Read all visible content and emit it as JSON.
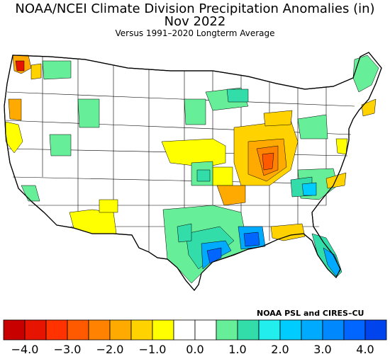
{
  "header": {
    "title": "NOAA/NCEI Climate Division Precipitation Anomalies (in)",
    "period": "Nov 2022",
    "subtitle": "Versus 1991–2020 Longterm Average"
  },
  "credit": "NOAA PSL and CIRES–CU",
  "legend": {
    "bins": [
      {
        "color": "#c80000",
        "min": -4.5,
        "max": -4.0
      },
      {
        "color": "#e61400",
        "min": -4.0,
        "max": -3.5
      },
      {
        "color": "#ff3200",
        "min": -3.5,
        "max": -3.0
      },
      {
        "color": "#ff5a00",
        "min": -3.0,
        "max": -2.5
      },
      {
        "color": "#ff8200",
        "min": -2.5,
        "max": -2.0
      },
      {
        "color": "#ffaa00",
        "min": -2.0,
        "max": -1.5
      },
      {
        "color": "#ffd200",
        "min": -1.5,
        "max": -1.0
      },
      {
        "color": "#ffff00",
        "min": -1.0,
        "max": -0.5
      },
      {
        "color": "#ffffff",
        "min": -0.5,
        "max": 0.0
      },
      {
        "color": "#ffffff",
        "min": 0.0,
        "max": 0.5
      },
      {
        "color": "#66ee99",
        "min": 0.5,
        "max": 1.0
      },
      {
        "color": "#33ddaa",
        "min": 1.0,
        "max": 1.5
      },
      {
        "color": "#22eeee",
        "min": 1.5,
        "max": 2.0
      },
      {
        "color": "#00ccff",
        "min": 2.0,
        "max": 2.5
      },
      {
        "color": "#00aaff",
        "min": 2.5,
        "max": 3.0
      },
      {
        "color": "#0088ff",
        "min": 3.0,
        "max": 3.5
      },
      {
        "color": "#0066ff",
        "min": 3.5,
        "max": 4.0
      },
      {
        "color": "#0044ee",
        "min": 4.0,
        "max": 4.5
      }
    ],
    "ticks": [
      "−4.0",
      "−3.0",
      "−2.0",
      "−1.0",
      "0.0",
      "1.0",
      "2.0",
      "3.0",
      "4.0"
    ]
  }
}
